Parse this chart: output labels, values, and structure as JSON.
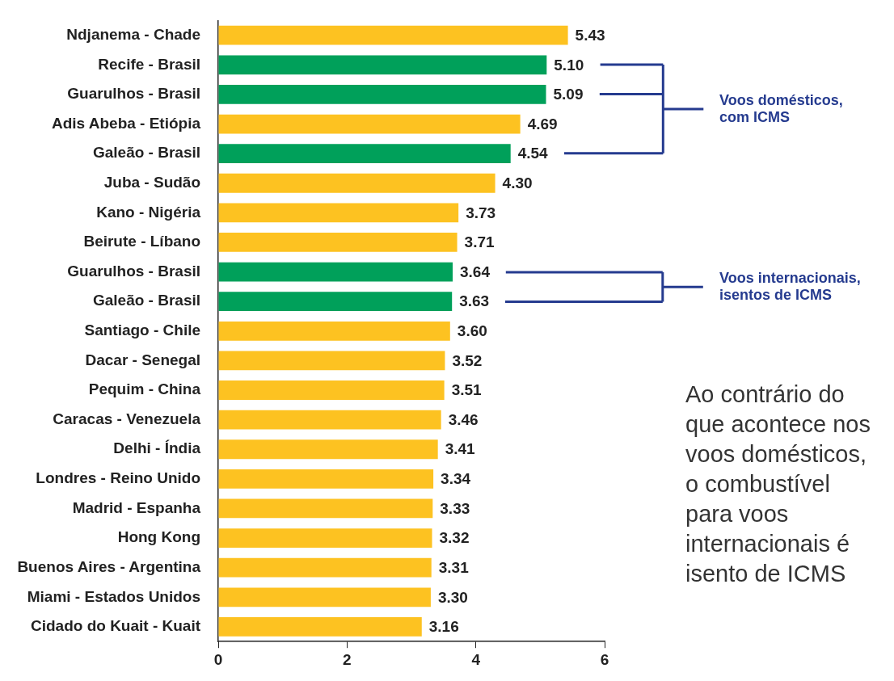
{
  "chart_data": {
    "type": "bar",
    "orientation": "horizontal",
    "categories": [
      "Ndjanema - Chade",
      "Recife - Brasil",
      "Guarulhos - Brasil",
      "Adis Abeba - Etiópia",
      "Galeão - Brasil",
      "Juba - Sudão",
      "Kano - Nigéria",
      "Beirute - Líbano",
      "Guarulhos - Brasil",
      "Galeão - Brasil",
      "Santiago - Chile",
      "Dacar - Senegal",
      "Pequim - China",
      "Caracas - Venezuela",
      "Delhi - Índia",
      "Londres - Reino Unido",
      "Madrid - Espanha",
      "Hong Kong",
      "Buenos Aires - Argentina",
      "Miami - Estados Unidos",
      "Cidado do Kuait - Kuait"
    ],
    "values": [
      5.43,
      5.1,
      5.09,
      4.69,
      4.54,
      4.3,
      3.73,
      3.71,
      3.64,
      3.63,
      3.6,
      3.52,
      3.51,
      3.46,
      3.41,
      3.34,
      3.33,
      3.32,
      3.31,
      3.3,
      3.16
    ],
    "colors": [
      "#fdc221",
      "#00a05a",
      "#00a05a",
      "#fdc221",
      "#00a05a",
      "#fdc221",
      "#fdc221",
      "#fdc221",
      "#00a05a",
      "#00a05a",
      "#fdc221",
      "#fdc221",
      "#fdc221",
      "#fdc221",
      "#fdc221",
      "#fdc221",
      "#fdc221",
      "#fdc221",
      "#fdc221",
      "#fdc221",
      "#fdc221"
    ],
    "value_labels": [
      "5.43",
      "5.10",
      "5.09",
      "4.69",
      "4.54",
      "4.30",
      "3.73",
      "3.71",
      "3.64",
      "3.63",
      "3.60",
      "3.52",
      "3.51",
      "3.46",
      "3.41",
      "3.34",
      "3.33",
      "3.32",
      "3.31",
      "3.30",
      "3.16"
    ],
    "xlim": [
      0,
      6
    ],
    "xticks": [
      0,
      2,
      4,
      6
    ],
    "legend": false,
    "annotations": [
      "Voos domésticos, com ICMS",
      "Voos internacionais, isentos de ICMS",
      "Ao contrário do que acontece nos voos domésticos, o combustível para voos internacionais é isento de ICMS"
    ]
  }
}
